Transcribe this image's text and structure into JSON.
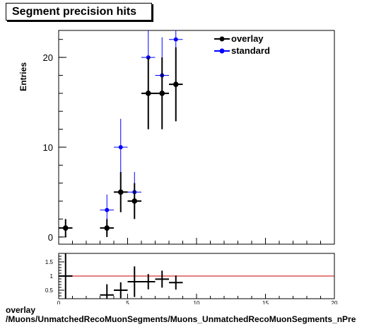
{
  "title": "Segment precision hits",
  "footer": {
    "line1": "overlay",
    "line2": "/Muons/UnmatchedRecoMuonSegments/Muons_UnmatchedRecoMuonSegments_nPre"
  },
  "colors": {
    "overlay": "#000000",
    "standard": "#0000ff",
    "ratio_line": "#cc0000"
  },
  "chart_data": [
    {
      "type": "scatter",
      "role": "main",
      "ylabel": "Entries",
      "xlim": [
        0,
        20
      ],
      "ylim": [
        -0.8,
        23
      ],
      "xticks": [
        0,
        5,
        10,
        15,
        20
      ],
      "yticks": [
        0,
        10,
        20
      ],
      "ytick_labels": [
        "0",
        "10",
        "20"
      ],
      "grid": false,
      "legend": {
        "placement": "top-right",
        "entries": [
          "overlay",
          "standard"
        ]
      },
      "series": [
        {
          "name": "overlay",
          "color": "#000000",
          "points": [
            {
              "x": 0.5,
              "y": 1,
              "xerr": 0.5,
              "yerr": 1.0
            },
            {
              "x": 3.5,
              "y": 1,
              "xerr": 0.5,
              "yerr": 1.0
            },
            {
              "x": 4.5,
              "y": 5,
              "xerr": 0.5,
              "yerr": 2.24
            },
            {
              "x": 5.5,
              "y": 4,
              "xerr": 0.5,
              "yerr": 2.0
            },
            {
              "x": 6.5,
              "y": 16,
              "xerr": 0.5,
              "yerr": 4.0
            },
            {
              "x": 7.5,
              "y": 16,
              "xerr": 0.5,
              "yerr": 4.0
            },
            {
              "x": 8.5,
              "y": 17,
              "xerr": 0.5,
              "yerr": 4.12
            }
          ]
        },
        {
          "name": "standard",
          "color": "#0000ff",
          "points": [
            {
              "x": 3.5,
              "y": 3,
              "xerr": 0.5,
              "yerr": 1.73
            },
            {
              "x": 4.5,
              "y": 10,
              "xerr": 0.5,
              "yerr": 3.16
            },
            {
              "x": 5.5,
              "y": 5,
              "xerr": 0.5,
              "yerr": 2.24
            },
            {
              "x": 6.5,
              "y": 20,
              "xerr": 0.5,
              "yerr": 4.47
            },
            {
              "x": 7.5,
              "y": 18,
              "xerr": 0.5,
              "yerr": 4.24
            },
            {
              "x": 8.5,
              "y": 22,
              "xerr": 0.5,
              "yerr": 4.69
            }
          ]
        }
      ]
    },
    {
      "type": "scatter",
      "role": "ratio",
      "xlim": [
        0,
        20
      ],
      "ylim": [
        0.2,
        1.8
      ],
      "xticks": [
        0,
        5,
        10,
        15,
        20
      ],
      "xtick_labels": [
        "0",
        "5",
        "10",
        "15",
        "20"
      ],
      "yticks": [
        0.5,
        1,
        1.5
      ],
      "ytick_labels": [
        "0.5",
        "1",
        "1.5"
      ],
      "reference_line": 1,
      "series": [
        {
          "name": "overlay/standard",
          "color": "#000000",
          "points": [
            {
              "x": 0.5,
              "y": 1.0,
              "xerr": 0.5,
              "yerr": 1.0
            },
            {
              "x": 3.5,
              "y": 0.33,
              "xerr": 0.5,
              "yerr": 0.38
            },
            {
              "x": 4.5,
              "y": 0.5,
              "xerr": 0.5,
              "yerr": 0.28
            },
            {
              "x": 5.5,
              "y": 0.8,
              "xerr": 0.5,
              "yerr": 0.54
            },
            {
              "x": 6.5,
              "y": 0.8,
              "xerr": 0.5,
              "yerr": 0.27
            },
            {
              "x": 7.5,
              "y": 0.89,
              "xerr": 0.5,
              "yerr": 0.3
            },
            {
              "x": 8.5,
              "y": 0.77,
              "xerr": 0.5,
              "yerr": 0.25
            }
          ]
        }
      ]
    }
  ]
}
